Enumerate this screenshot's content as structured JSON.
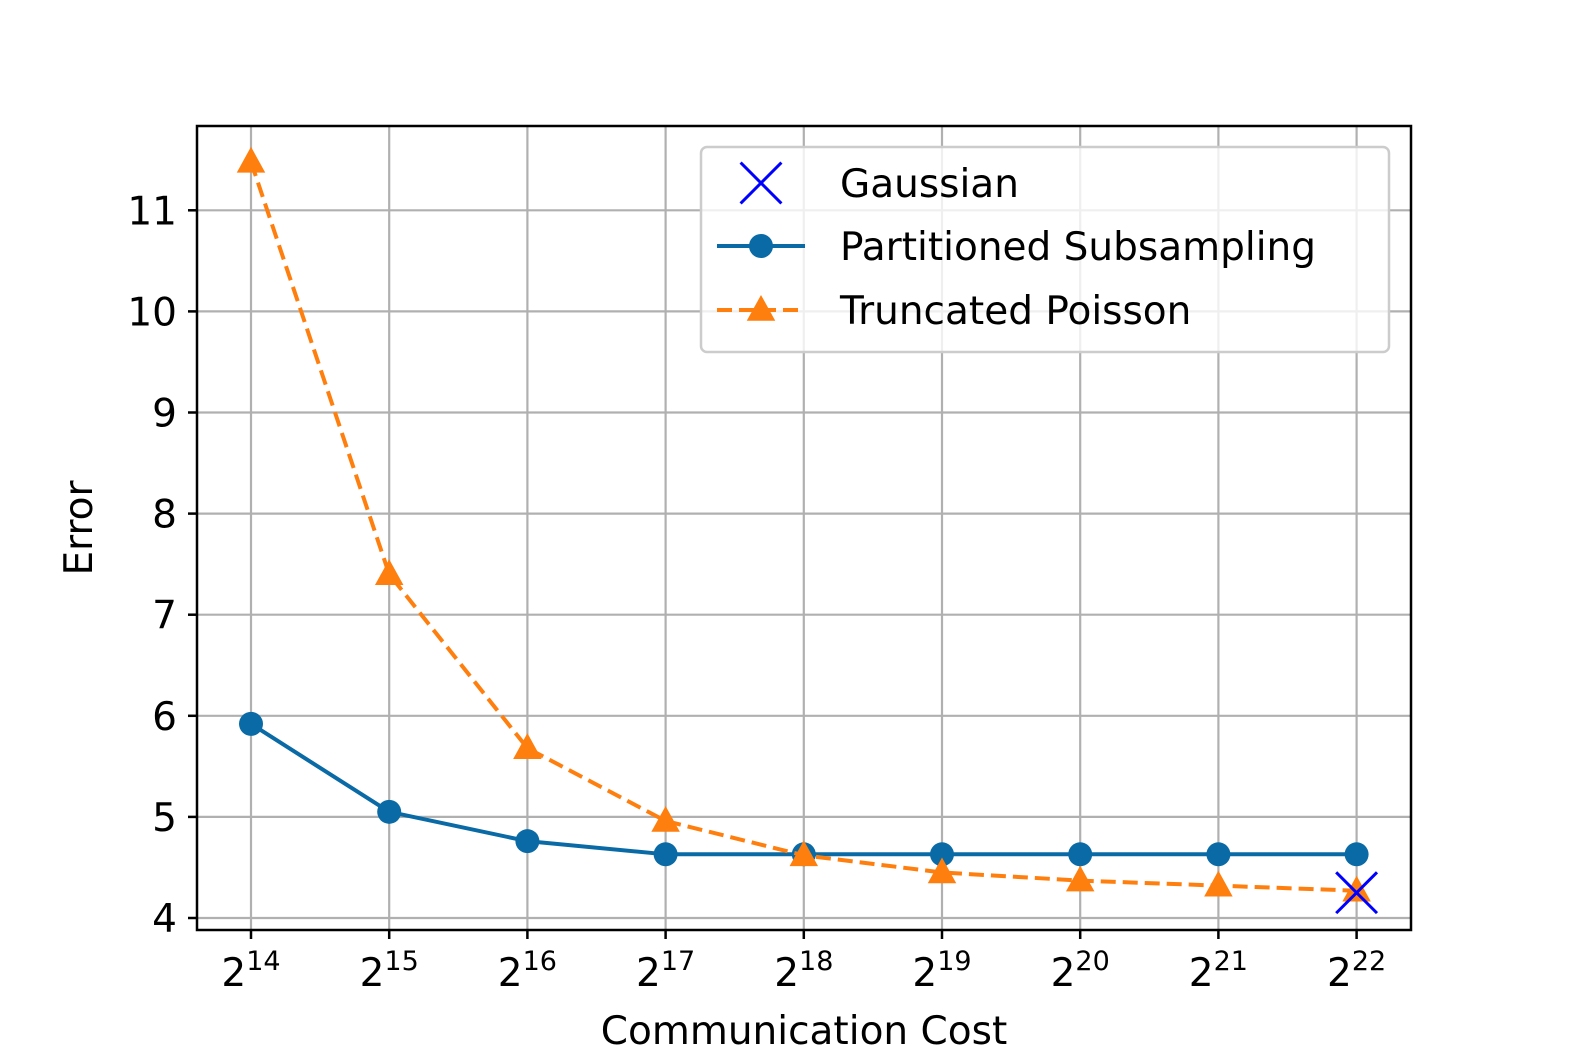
{
  "chart_data": {
    "type": "line",
    "title": "",
    "xlabel": "Communication Cost",
    "ylabel": "Error",
    "x_tick_base": "2",
    "x_exponents": [
      14,
      15,
      16,
      17,
      18,
      19,
      20,
      21,
      22
    ],
    "x_tick_labels": [
      {
        "base": "2",
        "exp": "14"
      },
      {
        "base": "2",
        "exp": "15"
      },
      {
        "base": "2",
        "exp": "16"
      },
      {
        "base": "2",
        "exp": "17"
      },
      {
        "base": "2",
        "exp": "18"
      },
      {
        "base": "2",
        "exp": "19"
      },
      {
        "base": "2",
        "exp": "20"
      },
      {
        "base": "2",
        "exp": "21"
      },
      {
        "base": "2",
        "exp": "22"
      }
    ],
    "x_scale": "log2",
    "y_ticks": [
      "4",
      "5",
      "6",
      "7",
      "8",
      "9",
      "10",
      "11"
    ],
    "ylim": [
      3.85,
      11.85
    ],
    "grid": true,
    "legend_position": "top-right",
    "series": [
      {
        "name": "Gaussian",
        "color": "#0000ff",
        "marker": "x",
        "line": "none",
        "points": [
          {
            "x_exp": 22,
            "y": 4.25
          }
        ]
      },
      {
        "name": "Partitioned Subsampling",
        "color": "#0a6aa6",
        "marker": "circle",
        "line": "solid",
        "points": [
          {
            "x_exp": 14,
            "y": 5.92
          },
          {
            "x_exp": 15,
            "y": 5.05
          },
          {
            "x_exp": 16,
            "y": 4.76
          },
          {
            "x_exp": 17,
            "y": 4.63
          },
          {
            "x_exp": 18,
            "y": 4.63
          },
          {
            "x_exp": 19,
            "y": 4.63
          },
          {
            "x_exp": 20,
            "y": 4.63
          },
          {
            "x_exp": 21,
            "y": 4.63
          },
          {
            "x_exp": 22,
            "y": 4.63
          }
        ]
      },
      {
        "name": "Truncated Poisson",
        "color": "#ff7f0e",
        "marker": "triangle",
        "line": "dashed",
        "points": [
          {
            "x_exp": 14,
            "y": 11.48
          },
          {
            "x_exp": 15,
            "y": 7.4
          },
          {
            "x_exp": 16,
            "y": 5.68
          },
          {
            "x_exp": 17,
            "y": 4.96
          },
          {
            "x_exp": 18,
            "y": 4.62
          },
          {
            "x_exp": 19,
            "y": 4.45
          },
          {
            "x_exp": 20,
            "y": 4.37
          },
          {
            "x_exp": 21,
            "y": 4.32
          },
          {
            "x_exp": 22,
            "y": 4.27
          }
        ]
      }
    ]
  }
}
